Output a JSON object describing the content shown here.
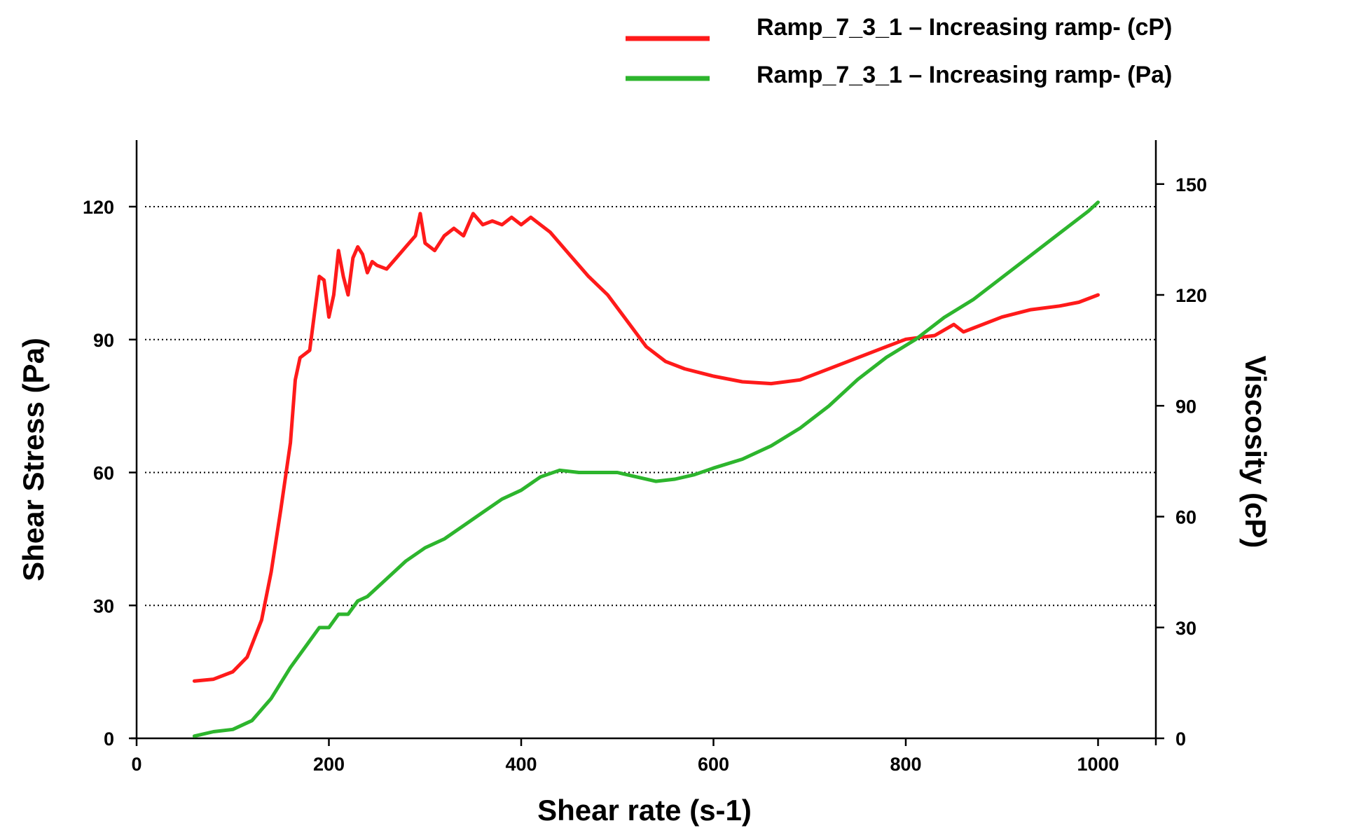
{
  "chart_data": {
    "type": "line",
    "title": "",
    "xlabel": "Shear rate (s-1)",
    "ylabel_left": "Shear Stress (Pa)",
    "ylabel_right": "Viscosity (cP)",
    "xlim": [
      0,
      1050
    ],
    "ylim_left": [
      0,
      130
    ],
    "ylim_right": [
      0,
      160
    ],
    "x_ticks": [
      "0",
      "200",
      "400",
      "600",
      "800",
      "1000"
    ],
    "y_ticks_left": [
      "0",
      "30",
      "60",
      "90",
      "120"
    ],
    "y_ticks_right": [
      "0",
      "30",
      "60",
      "90",
      "120",
      "150"
    ],
    "grid": "horizontal dotted at left-axis ticks 30, 60, 90, 120",
    "legend_position": "top-right",
    "series": [
      {
        "name": "Ramp_7_3_1 – Increasing ramp- (cP)",
        "color": "#ff1a1a",
        "axis": "right",
        "x": [
          60,
          80,
          100,
          115,
          130,
          140,
          150,
          160,
          165,
          170,
          180,
          185,
          190,
          195,
          200,
          205,
          210,
          215,
          220,
          225,
          230,
          235,
          240,
          245,
          250,
          260,
          270,
          280,
          290,
          295,
          300,
          310,
          320,
          330,
          340,
          350,
          360,
          370,
          380,
          390,
          400,
          410,
          420,
          430,
          450,
          470,
          490,
          510,
          530,
          550,
          570,
          600,
          630,
          660,
          690,
          710,
          740,
          770,
          800,
          830,
          850,
          860,
          870,
          900,
          930,
          960,
          980,
          1000
        ],
        "values": [
          15.5,
          16,
          18,
          22,
          32,
          45,
          62,
          80,
          97,
          103,
          105,
          115,
          125,
          124,
          114,
          120,
          132,
          125,
          120,
          130,
          133,
          131,
          126,
          129,
          128,
          127,
          130,
          133,
          136,
          142,
          134,
          132,
          136,
          138,
          136,
          142,
          139,
          140,
          139,
          141,
          139,
          141,
          139,
          137,
          131,
          125,
          120,
          113,
          106,
          102,
          100,
          98,
          96.5,
          96,
          97,
          99,
          102,
          105,
          108,
          109,
          112,
          110,
          111,
          114,
          116,
          117,
          118,
          120
        ]
      },
      {
        "name": "Ramp_7_3_1 – Increasing ramp- (Pa)",
        "color": "#2db52d",
        "axis": "left",
        "x": [
          60,
          80,
          100,
          120,
          140,
          160,
          180,
          190,
          200,
          210,
          220,
          230,
          240,
          260,
          280,
          300,
          320,
          340,
          360,
          380,
          400,
          420,
          440,
          460,
          480,
          500,
          520,
          540,
          560,
          580,
          600,
          630,
          660,
          690,
          720,
          750,
          780,
          810,
          840,
          870,
          900,
          930,
          960,
          990,
          1000
        ],
        "values": [
          0.5,
          1.5,
          2,
          4,
          9,
          16,
          22,
          25,
          25,
          28,
          28,
          31,
          32,
          36,
          40,
          43,
          45,
          48,
          51,
          54,
          56,
          59,
          60.5,
          60,
          60,
          60,
          59,
          58,
          58.5,
          59.5,
          61,
          63,
          66,
          70,
          75,
          81,
          86,
          90,
          95,
          99,
          104,
          109,
          114,
          119,
          121
        ]
      }
    ]
  }
}
